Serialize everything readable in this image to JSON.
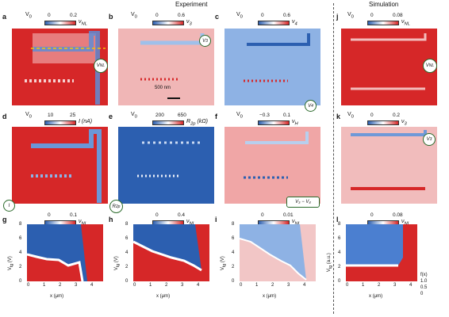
{
  "headers": {
    "experiment": "Experiment",
    "simulation": "Simulation"
  },
  "panels": [
    {
      "id": "a",
      "letter": "a",
      "lead": "V",
      "lead_sub": "0",
      "cbar": [
        "0",
        "0.2"
      ],
      "sym": "ν",
      "sym_sub": "NL",
      "circle": "V",
      "circle_sub": "NL"
    },
    {
      "id": "b",
      "letter": "b",
      "lead": "V",
      "lead_sub": "0",
      "cbar": [
        "0",
        "0.6"
      ],
      "sym": "ν",
      "sym_sub": "3",
      "circle": "V",
      "circle_sub": "3",
      "scalebar": "500 nm"
    },
    {
      "id": "c",
      "letter": "c",
      "lead": "V",
      "lead_sub": "0",
      "cbar": [
        "0",
        "0.6"
      ],
      "sym": "ν",
      "sym_sub": "4",
      "circle": "V",
      "circle_sub": "4"
    },
    {
      "id": "d",
      "letter": "d",
      "lead": "V",
      "lead_sub": "0",
      "cbar": [
        "10",
        "25"
      ],
      "sym": "I",
      "sym_sub": "",
      "unit": "(nA)",
      "circle": "I",
      "circle_sub": ""
    },
    {
      "id": "e",
      "letter": "e",
      "lead": "V",
      "lead_sub": "0",
      "cbar": [
        "200",
        "650"
      ],
      "sym": "R",
      "sym_sub": "2p",
      "unit": "(kΩ)",
      "circle": "R",
      "circle_sub": "2p"
    },
    {
      "id": "f",
      "letter": "f",
      "lead": "V",
      "lead_sub": "0",
      "cbar": [
        "−0.3",
        "0.1"
      ],
      "sym": "ν",
      "sym_sub": "H",
      "box": "V₃ − V₄"
    },
    {
      "id": "j",
      "letter": "j",
      "lead": "V",
      "lead_sub": "0",
      "cbar": [
        "0",
        "0.08"
      ],
      "sym": "ν",
      "sym_sub": "NL",
      "circle": "V",
      "circle_sub": "NL"
    },
    {
      "id": "k",
      "letter": "k",
      "lead": "V",
      "lead_sub": "0",
      "cbar": [
        "0",
        "0.2"
      ],
      "sym": "ν",
      "sym_sub": "3",
      "circle": "V",
      "circle_sub": "3"
    }
  ],
  "gate_panels": [
    {
      "id": "g",
      "letter": "g",
      "cbar": [
        "0",
        "0.1"
      ],
      "sym": "ν",
      "sym_sub": "NL",
      "ylabel": "V",
      "ylabel_sub": "tg",
      "yunit": "(V)"
    },
    {
      "id": "h",
      "letter": "h",
      "cbar": [
        "0",
        "0.4"
      ],
      "sym": "ν",
      "sym_sub": "NL",
      "ylabel": "V",
      "ylabel_sub": "tg",
      "yunit": "(V)"
    },
    {
      "id": "i",
      "letter": "i",
      "cbar": [
        "0",
        "0.01"
      ],
      "sym": "ν",
      "sym_sub": "NL",
      "ylabel": "V",
      "ylabel_sub": "tg",
      "yunit": "(V)"
    },
    {
      "id": "l",
      "letter": "l",
      "cbar": [
        "0",
        "0.08"
      ],
      "sym": "ν",
      "sym_sub": "NL",
      "ylabel": "V",
      "ylabel_sub": "tg",
      "yunit": "(a.u.)"
    }
  ],
  "yticks": [
    "8",
    "6",
    "4",
    "2",
    "0"
  ],
  "xticks": [
    "0",
    "1",
    "2",
    "3",
    "4"
  ],
  "xlabel": "x (μm)",
  "l_yticks": [
    "8",
    "6",
    "4",
    "2",
    "0"
  ],
  "l_right_label": "f(x)",
  "l_right_ticks": [
    "1.0",
    "0.5",
    "0"
  ],
  "colors": {
    "red": "#d62728",
    "blue": "#2c5fb0",
    "white": "#ffffff",
    "pink": "#f1b3b3",
    "lightblue": "#9dbbe6",
    "green": "#2b6a2b"
  }
}
